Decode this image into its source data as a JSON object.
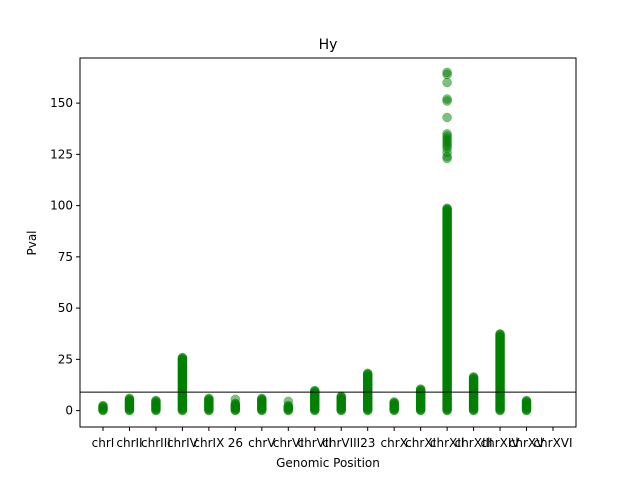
{
  "chart_data": {
    "type": "scatter",
    "title": "Hy",
    "xlabel": "Genomic Position",
    "ylabel": "Pval",
    "categories": [
      "chrI",
      "chrII",
      "chrIII",
      "chrIV",
      "chrIX",
      "26",
      "chrV",
      "chrVI",
      "chrVII",
      "chrVIII",
      "23",
      "chrX",
      "chrXI",
      "chrXII",
      "chrXIII",
      "chrXIV",
      "chrXV",
      "chrXVI"
    ],
    "ylim": [
      -8,
      172
    ],
    "yticks": [
      0,
      25,
      50,
      75,
      100,
      125,
      150
    ],
    "threshold": 9,
    "grid": false,
    "point_color": "#008000",
    "threshold_color": "#000000",
    "series": [
      {
        "category": "chrI",
        "max": 2.5,
        "extra": []
      },
      {
        "category": "chrII",
        "max": 6,
        "extra": []
      },
      {
        "category": "chrIII",
        "max": 5,
        "extra": []
      },
      {
        "category": "chrIV",
        "max": 26,
        "extra": []
      },
      {
        "category": "chrIX",
        "max": 6,
        "extra": []
      },
      {
        "category": "26",
        "max": 3.5,
        "extra": [
          5.5
        ]
      },
      {
        "category": "chrV",
        "max": 6,
        "extra": []
      },
      {
        "category": "chrVI",
        "max": 2.5,
        "extra": [
          4.5
        ]
      },
      {
        "category": "chrVII",
        "max": 10,
        "extra": []
      },
      {
        "category": "chrVIII",
        "max": 7,
        "extra": []
      },
      {
        "category": "23",
        "max": 18.5,
        "extra": []
      },
      {
        "category": "chrX",
        "max": 4.5,
        "extra": []
      },
      {
        "category": "chrXI",
        "max": 10.5,
        "extra": []
      },
      {
        "category": "chrXII",
        "max": 99,
        "extra": [
          123,
          124,
          126,
          128,
          129,
          130,
          131,
          132,
          133,
          134,
          135,
          143,
          151,
          152,
          160,
          164,
          165
        ]
      },
      {
        "category": "chrXIII",
        "max": 16.5,
        "extra": []
      },
      {
        "category": "chrXIV",
        "max": 37.5,
        "extra": []
      },
      {
        "category": "chrXV",
        "max": 5,
        "extra": []
      }
    ]
  }
}
